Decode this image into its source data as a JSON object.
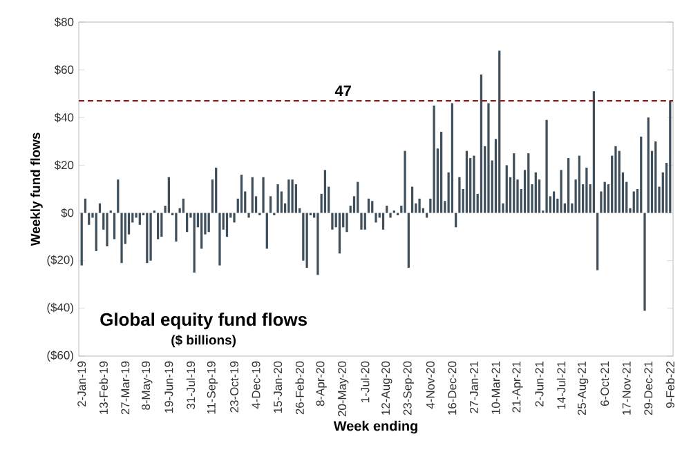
{
  "chart_data": {
    "type": "bar",
    "xlabel": "Week ending",
    "ylabel": "Weekly fund flows",
    "annotations": [
      "Global equity fund flows",
      "($ billions)"
    ],
    "categories": [
      "2-Jan-19",
      null,
      null,
      null,
      null,
      null,
      "13-Feb-19",
      null,
      null,
      null,
      null,
      null,
      "27-Mar-19",
      null,
      null,
      null,
      null,
      null,
      "8-May-19",
      null,
      null,
      null,
      null,
      null,
      "19-Jun-19",
      null,
      null,
      null,
      null,
      null,
      "31-Jul-19",
      null,
      null,
      null,
      null,
      null,
      "11-Sep-19",
      null,
      null,
      null,
      null,
      null,
      "23-Oct-19",
      null,
      null,
      null,
      null,
      null,
      "4-Dec-19",
      null,
      null,
      null,
      null,
      null,
      "15-Jan-20",
      null,
      null,
      null,
      null,
      null,
      "26-Feb-20",
      null,
      null,
      null,
      null,
      null,
      "8-Apr-20",
      null,
      null,
      null,
      null,
      null,
      "20-May-20",
      null,
      null,
      null,
      null,
      null,
      "1-Jul-20",
      null,
      null,
      null,
      null,
      null,
      "12-Aug-20",
      null,
      null,
      null,
      null,
      null,
      "23-Sep-20",
      null,
      null,
      null,
      null,
      null,
      "4-Nov-20",
      null,
      null,
      null,
      null,
      null,
      "16-Dec-20",
      null,
      null,
      null,
      null,
      null,
      "27-Jan-21",
      null,
      null,
      null,
      null,
      null,
      "10-Mar-21",
      null,
      null,
      null,
      null,
      null,
      "21-Apr-21",
      null,
      null,
      null,
      null,
      null,
      "2-Jun-21",
      null,
      null,
      null,
      null,
      null,
      "14-Jul-21",
      null,
      null,
      null,
      null,
      null,
      "25-Aug-21",
      null,
      null,
      null,
      null,
      null,
      "6-Oct-21",
      null,
      null,
      null,
      null,
      null,
      "17-Nov-21",
      null,
      null,
      null,
      null,
      null,
      "29-Dec-21",
      null,
      null,
      null,
      null,
      null,
      "9-Feb-22"
    ],
    "values": [
      -22,
      6,
      -5,
      -2,
      -16,
      4,
      -7,
      -14,
      1,
      -11,
      14,
      -21,
      -13,
      -9,
      -4,
      -2,
      -5,
      -1,
      -21,
      -20,
      1,
      -11,
      -10,
      3,
      15,
      -1,
      -12,
      2,
      6,
      -8,
      -2,
      -25,
      -6,
      -15,
      -9,
      -8,
      14,
      19,
      -22,
      -7,
      -10,
      -2,
      -4,
      6,
      16,
      9,
      -2,
      15,
      7,
      -1,
      15,
      -15,
      7,
      -1,
      12,
      9,
      4,
      14,
      14,
      12,
      2,
      -20,
      -23,
      -1,
      -2,
      -26,
      8,
      18,
      11,
      -7,
      -6,
      -17,
      -6,
      -8,
      3,
      7,
      13,
      -7,
      -7,
      6,
      5,
      -4,
      -2,
      -7,
      3,
      -2,
      1,
      -1,
      3,
      26,
      -23,
      11,
      4,
      6,
      2,
      -2,
      6,
      45,
      27,
      34,
      5,
      17,
      46,
      -6,
      15,
      10,
      26,
      23,
      24,
      8,
      58,
      28,
      46,
      22,
      31,
      68,
      4,
      20,
      15,
      25,
      14,
      10,
      18,
      25,
      12,
      17,
      14,
      1,
      39,
      7,
      9,
      6,
      18,
      4,
      23,
      4,
      14,
      24,
      12,
      19,
      12,
      51,
      -24,
      9,
      13,
      12,
      24,
      28,
      26,
      17,
      13,
      2,
      9,
      10,
      32,
      -41,
      40,
      26,
      30,
      11,
      17,
      21,
      47
    ],
    "color": "#3f505c",
    "ylim": [
      -60,
      80
    ],
    "yticks": [
      {
        "value": -60,
        "label": "($60)"
      },
      {
        "value": -40,
        "label": "($40)"
      },
      {
        "value": -20,
        "label": "($20)"
      },
      {
        "value": 0,
        "label": "$0"
      },
      {
        "value": 20,
        "label": "$20"
      },
      {
        "value": 40,
        "label": "$40"
      },
      {
        "value": 60,
        "label": "$60"
      },
      {
        "value": 80,
        "label": "$80"
      }
    ],
    "ref_lines": [
      {
        "axis": "y",
        "value": 47,
        "label": "47",
        "color": "#8b1a1a",
        "line_style": "dashed"
      }
    ]
  }
}
